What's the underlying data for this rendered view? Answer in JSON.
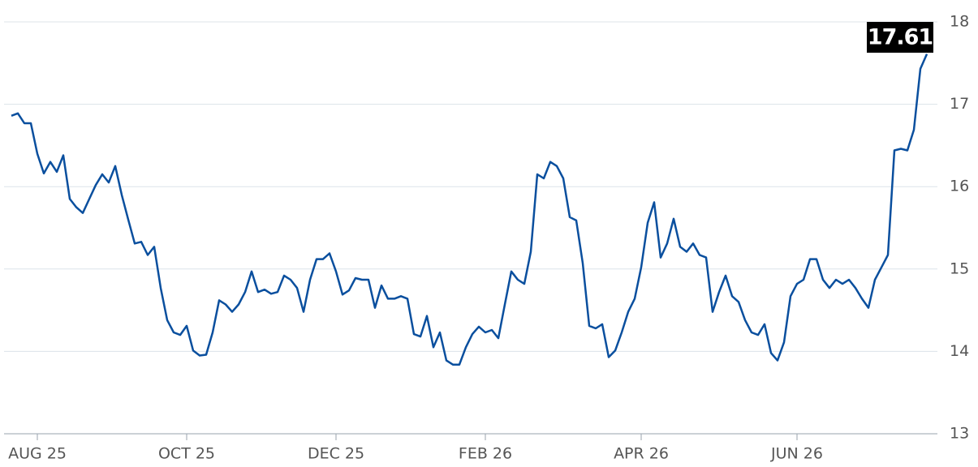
{
  "chart_data": {
    "type": "line",
    "categories": [
      null,
      null,
      null,
      null,
      "AUG 25",
      null,
      null,
      null,
      null,
      null,
      null,
      null,
      null,
      null,
      null,
      null,
      null,
      null,
      null,
      null,
      null,
      null,
      null,
      null,
      null,
      null,
      null,
      "OCT 25",
      null,
      null,
      null,
      null,
      null,
      null,
      null,
      null,
      null,
      null,
      null,
      null,
      null,
      null,
      null,
      null,
      null,
      null,
      null,
      null,
      null,
      null,
      "DEC 25",
      null,
      null,
      null,
      null,
      null,
      null,
      null,
      null,
      null,
      null,
      null,
      null,
      null,
      null,
      null,
      null,
      null,
      null,
      null,
      null,
      null,
      null,
      "FEB 26",
      null,
      null,
      null,
      null,
      null,
      null,
      null,
      null,
      null,
      null,
      null,
      null,
      null,
      null,
      null,
      null,
      null,
      null,
      null,
      null,
      null,
      null,
      null,
      "APR 26",
      null,
      null,
      null,
      null,
      null,
      null,
      null,
      null,
      null,
      null,
      null,
      null,
      null,
      null,
      null,
      null,
      null,
      null,
      null,
      null,
      null,
      null,
      null,
      "JUN 26",
      null,
      null,
      null,
      null,
      null,
      null,
      null,
      null,
      null,
      null,
      null,
      null,
      null,
      null,
      null,
      null,
      null,
      null,
      null,
      null
    ],
    "values": [
      16.86,
      16.89,
      16.77,
      16.77,
      16.4,
      16.16,
      16.3,
      16.18,
      16.38,
      15.85,
      15.75,
      15.68,
      15.85,
      16.02,
      16.15,
      16.05,
      16.25,
      15.9,
      15.6,
      15.31,
      15.33,
      15.17,
      15.27,
      14.77,
      14.38,
      14.23,
      14.2,
      14.31,
      14.01,
      13.95,
      13.96,
      14.23,
      14.62,
      14.57,
      14.48,
      14.57,
      14.72,
      14.97,
      14.72,
      14.75,
      14.7,
      14.72,
      14.92,
      14.87,
      14.77,
      14.48,
      14.87,
      15.12,
      15.12,
      15.19,
      14.97,
      14.69,
      14.74,
      14.89,
      14.87,
      14.87,
      14.53,
      14.8,
      14.64,
      14.64,
      14.67,
      14.64,
      14.21,
      14.18,
      14.43,
      14.05,
      14.23,
      13.89,
      13.84,
      13.84,
      14.05,
      14.21,
      14.3,
      14.23,
      14.26,
      14.16,
      14.57,
      14.97,
      14.87,
      14.82,
      15.21,
      16.15,
      16.1,
      16.3,
      16.25,
      16.1,
      15.63,
      15.59,
      15.07,
      14.31,
      14.28,
      14.33,
      13.93,
      14.01,
      14.23,
      14.48,
      14.64,
      15.02,
      15.56,
      15.81,
      15.14,
      15.31,
      15.61,
      15.27,
      15.21,
      15.31,
      15.17,
      15.14,
      14.48,
      14.72,
      14.92,
      14.67,
      14.6,
      14.38,
      14.23,
      14.2,
      14.33,
      13.98,
      13.89,
      14.11,
      14.67,
      14.82,
      14.87,
      15.12,
      15.12,
      14.87,
      14.77,
      14.87,
      14.82,
      14.87,
      14.77,
      14.64,
      14.53,
      14.87,
      15.02,
      15.17,
      16.44,
      16.46,
      16.44,
      16.69,
      17.43,
      17.61
    ],
    "color": "#0a4f9e",
    "ylim": [
      13,
      18
    ],
    "yticks": [
      13,
      14,
      15,
      16,
      17,
      18
    ],
    "grid": true,
    "last_value_label": true
  }
}
